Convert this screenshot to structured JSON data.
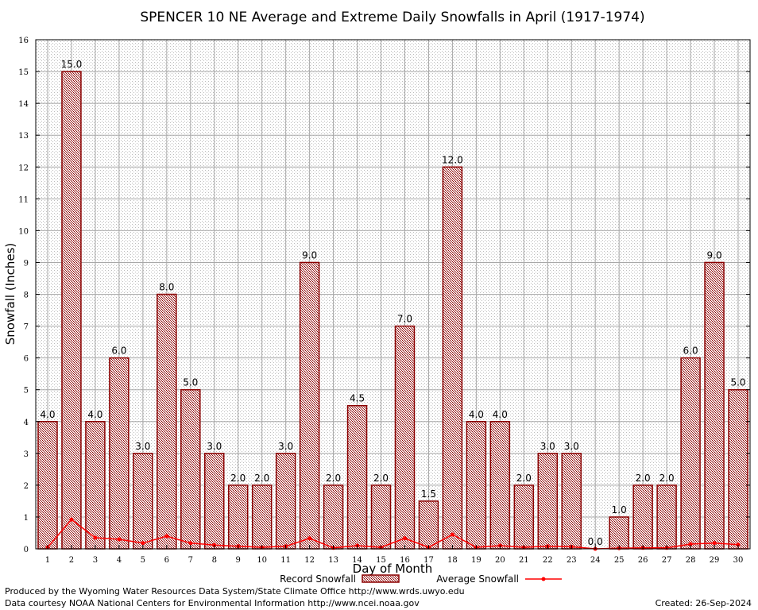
{
  "chart_data": {
    "type": "bar",
    "title": "SPENCER 10 NE Average and Extreme Daily Snowfalls in April (1917-1974)",
    "xlabel": "Day of Month",
    "ylabel": "Snowfall (Inches)",
    "ylim": [
      0,
      16
    ],
    "yticks": [
      0,
      1,
      2,
      3,
      4,
      5,
      6,
      7,
      8,
      9,
      10,
      11,
      12,
      13,
      14,
      15,
      16
    ],
    "categories": [
      "1",
      "2",
      "3",
      "4",
      "5",
      "6",
      "7",
      "8",
      "9",
      "10",
      "11",
      "12",
      "13",
      "14",
      "15",
      "16",
      "17",
      "18",
      "19",
      "20",
      "21",
      "22",
      "23",
      "24",
      "25",
      "26",
      "27",
      "28",
      "29",
      "30"
    ],
    "series": [
      {
        "name": "Record Snowfall",
        "type": "bar",
        "values": [
          4.0,
          15.0,
          4.0,
          6.0,
          3.0,
          8.0,
          5.0,
          3.0,
          2.0,
          2.0,
          3.0,
          9.0,
          2.0,
          4.5,
          2.0,
          7.0,
          1.5,
          12.0,
          4.0,
          4.0,
          2.0,
          3.0,
          3.0,
          0.0,
          1.0,
          2.0,
          2.0,
          6.0,
          9.0,
          5.0
        ],
        "labels": [
          "4.0",
          "15.0",
          "4.0",
          "6.0",
          "3.0",
          "8.0",
          "5.0",
          "3.0",
          "2.0",
          "2.0",
          "3.0",
          "9.0",
          "2.0",
          "4.5",
          "2.0",
          "7.0",
          "1.5",
          "12.0",
          "4.0",
          "4.0",
          "2.0",
          "3.0",
          "3.0",
          "0.0",
          "1.0",
          "2.0",
          "2.0",
          "6.0",
          "9.0",
          "5.0"
        ],
        "color": "#8b0000"
      },
      {
        "name": "Average Snowfall",
        "type": "line",
        "values": [
          0.05,
          0.92,
          0.35,
          0.3,
          0.18,
          0.4,
          0.18,
          0.12,
          0.08,
          0.05,
          0.08,
          0.33,
          0.03,
          0.1,
          0.05,
          0.33,
          0.05,
          0.45,
          0.05,
          0.1,
          0.05,
          0.08,
          0.07,
          0.0,
          0.02,
          0.03,
          0.03,
          0.15,
          0.18,
          0.13
        ],
        "color": "#ff0000"
      }
    ],
    "grid": true,
    "legend_position": "bottom"
  },
  "footer": {
    "produced_by": "Produced by the Wyoming Water Resources Data System/State Climate Office http://www.wrds.uwyo.edu",
    "data_courtesy": "Data courtesy NOAA National Centers for Environmental Information http://www.ncei.noaa.gov",
    "created": "Created:  26-Sep-2024"
  }
}
